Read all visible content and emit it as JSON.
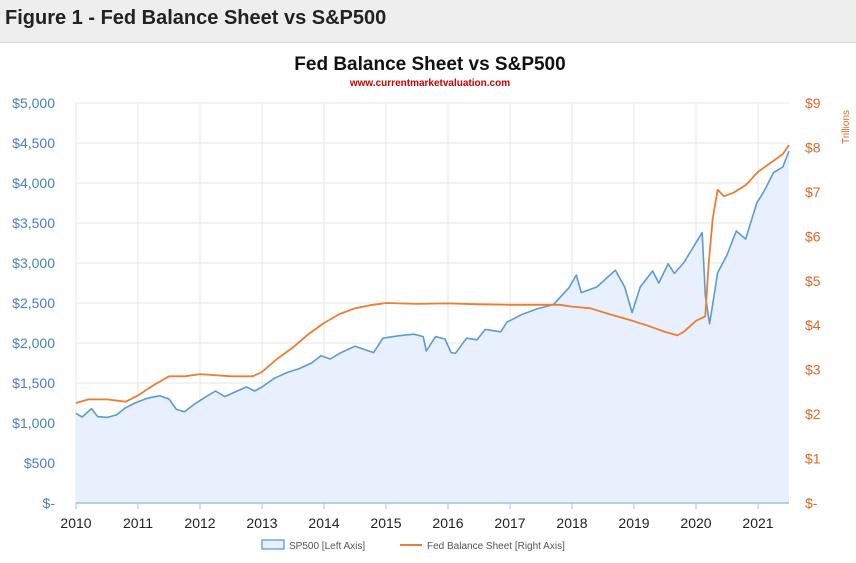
{
  "figure_header": "Figure 1 - Fed Balance Sheet vs S&P500",
  "colors": {
    "sp500": "#5b9bd5",
    "sp500_fill": "#e7f0fc",
    "fed": "#ed7d31",
    "axis_right": "#d9692a",
    "axis_left": "#4a7fc1",
    "source": "#cc0000"
  },
  "chart_data": {
    "type": "line",
    "title": "Fed Balance Sheet vs S&P500",
    "subtitle": "www.currentmarketvaluation.com",
    "x_ticks": [
      "2010",
      "2011",
      "2012",
      "2013",
      "2014",
      "2015",
      "2016",
      "2017",
      "2018",
      "2019",
      "2020",
      "2021"
    ],
    "xlim": [
      2010.0,
      2021.5
    ],
    "y_left": {
      "label": "",
      "ylim": [
        0,
        5000
      ],
      "tick_labels": [
        "$-",
        "$500",
        "$1,000",
        "$1,500",
        "$2,000",
        "$2,500",
        "$3,000",
        "$3,500",
        "$4,000",
        "$4,500",
        "$5,000"
      ],
      "tick_values": [
        0,
        500,
        1000,
        1500,
        2000,
        2500,
        3000,
        3500,
        4000,
        4500,
        5000
      ]
    },
    "y_right": {
      "label": "Trillions",
      "ylim": [
        0,
        9
      ],
      "tick_labels": [
        "$-",
        "$1",
        "$2",
        "$3",
        "$4",
        "$5",
        "$6",
        "$7",
        "$8",
        "$9"
      ],
      "tick_values": [
        0,
        1,
        2,
        3,
        4,
        5,
        6,
        7,
        8,
        9
      ]
    },
    "legend": [
      "SP500 [Left Axis]",
      "Fed Balance Sheet [Right Axis]"
    ],
    "legend_position": "bottom",
    "series": [
      {
        "name": "SP500 [Left Axis]",
        "axis": "left",
        "area": true,
        "points": [
          [
            2010.0,
            1120
          ],
          [
            2010.1,
            1075
          ],
          [
            2010.25,
            1180
          ],
          [
            2010.35,
            1080
          ],
          [
            2010.5,
            1070
          ],
          [
            2010.65,
            1100
          ],
          [
            2010.8,
            1190
          ],
          [
            2010.95,
            1250
          ],
          [
            2011.15,
            1310
          ],
          [
            2011.35,
            1340
          ],
          [
            2011.5,
            1300
          ],
          [
            2011.62,
            1170
          ],
          [
            2011.75,
            1140
          ],
          [
            2011.9,
            1230
          ],
          [
            2012.1,
            1330
          ],
          [
            2012.25,
            1400
          ],
          [
            2012.4,
            1330
          ],
          [
            2012.6,
            1400
          ],
          [
            2012.75,
            1450
          ],
          [
            2012.88,
            1400
          ],
          [
            2013.0,
            1450
          ],
          [
            2013.2,
            1560
          ],
          [
            2013.4,
            1630
          ],
          [
            2013.6,
            1680
          ],
          [
            2013.8,
            1750
          ],
          [
            2013.95,
            1840
          ],
          [
            2014.1,
            1800
          ],
          [
            2014.25,
            1870
          ],
          [
            2014.5,
            1960
          ],
          [
            2014.8,
            1880
          ],
          [
            2014.95,
            2060
          ],
          [
            2015.2,
            2090
          ],
          [
            2015.45,
            2110
          ],
          [
            2015.6,
            2080
          ],
          [
            2015.65,
            1900
          ],
          [
            2015.8,
            2080
          ],
          [
            2015.95,
            2050
          ],
          [
            2016.05,
            1880
          ],
          [
            2016.12,
            1870
          ],
          [
            2016.3,
            2060
          ],
          [
            2016.47,
            2040
          ],
          [
            2016.6,
            2170
          ],
          [
            2016.85,
            2140
          ],
          [
            2016.95,
            2260
          ],
          [
            2017.2,
            2360
          ],
          [
            2017.45,
            2430
          ],
          [
            2017.7,
            2480
          ],
          [
            2017.95,
            2690
          ],
          [
            2018.07,
            2850
          ],
          [
            2018.15,
            2630
          ],
          [
            2018.4,
            2700
          ],
          [
            2018.7,
            2910
          ],
          [
            2018.85,
            2700
          ],
          [
            2018.97,
            2380
          ],
          [
            2019.1,
            2700
          ],
          [
            2019.3,
            2900
          ],
          [
            2019.4,
            2750
          ],
          [
            2019.55,
            2990
          ],
          [
            2019.65,
            2870
          ],
          [
            2019.8,
            3000
          ],
          [
            2019.98,
            3230
          ],
          [
            2020.1,
            3380
          ],
          [
            2020.15,
            2600
          ],
          [
            2020.22,
            2240
          ],
          [
            2020.35,
            2880
          ],
          [
            2020.5,
            3100
          ],
          [
            2020.65,
            3400
          ],
          [
            2020.8,
            3300
          ],
          [
            2020.98,
            3750
          ],
          [
            2021.1,
            3900
          ],
          [
            2021.25,
            4130
          ],
          [
            2021.4,
            4200
          ],
          [
            2021.5,
            4400
          ]
        ]
      },
      {
        "name": "Fed Balance Sheet [Right Axis]",
        "axis": "right",
        "area": false,
        "points": [
          [
            2010.0,
            2.25
          ],
          [
            2010.2,
            2.33
          ],
          [
            2010.5,
            2.33
          ],
          [
            2010.8,
            2.28
          ],
          [
            2011.0,
            2.42
          ],
          [
            2011.25,
            2.65
          ],
          [
            2011.5,
            2.85
          ],
          [
            2011.75,
            2.85
          ],
          [
            2012.0,
            2.9
          ],
          [
            2012.5,
            2.85
          ],
          [
            2012.85,
            2.85
          ],
          [
            2013.0,
            2.95
          ],
          [
            2013.25,
            3.25
          ],
          [
            2013.5,
            3.5
          ],
          [
            2013.75,
            3.8
          ],
          [
            2014.0,
            4.05
          ],
          [
            2014.25,
            4.25
          ],
          [
            2014.5,
            4.38
          ],
          [
            2014.75,
            4.45
          ],
          [
            2015.0,
            4.5
          ],
          [
            2015.5,
            4.48
          ],
          [
            2016.0,
            4.49
          ],
          [
            2016.5,
            4.47
          ],
          [
            2017.0,
            4.46
          ],
          [
            2017.5,
            4.46
          ],
          [
            2017.8,
            4.46
          ],
          [
            2018.0,
            4.42
          ],
          [
            2018.3,
            4.38
          ],
          [
            2018.6,
            4.25
          ],
          [
            2018.9,
            4.13
          ],
          [
            2019.2,
            4.0
          ],
          [
            2019.5,
            3.85
          ],
          [
            2019.7,
            3.77
          ],
          [
            2019.8,
            3.85
          ],
          [
            2020.0,
            4.1
          ],
          [
            2020.15,
            4.2
          ],
          [
            2020.2,
            5.3
          ],
          [
            2020.27,
            6.4
          ],
          [
            2020.35,
            7.05
          ],
          [
            2020.45,
            6.9
          ],
          [
            2020.6,
            6.98
          ],
          [
            2020.8,
            7.15
          ],
          [
            2021.0,
            7.45
          ],
          [
            2021.2,
            7.65
          ],
          [
            2021.4,
            7.85
          ],
          [
            2021.5,
            8.05
          ]
        ]
      }
    ]
  }
}
